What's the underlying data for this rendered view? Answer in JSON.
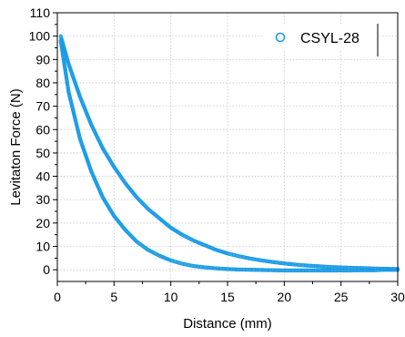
{
  "colors": {
    "series": "#1a9be6",
    "axis": "#000000",
    "grid": "#c8c8c8",
    "legend_border": "#000000"
  },
  "chart_data": {
    "type": "scatter",
    "title": "",
    "xlabel": "Distance (mm)",
    "ylabel": "Levitaton Force (N)",
    "xlim": [
      0,
      30
    ],
    "ylim": [
      -5,
      110
    ],
    "xticks": [
      0,
      5,
      10,
      15,
      20,
      25,
      30
    ],
    "yticks": [
      0,
      10,
      20,
      30,
      40,
      50,
      60,
      70,
      80,
      90,
      100,
      110
    ],
    "grid": "dotted",
    "legend": {
      "position": "top-right",
      "marker": "open-circle"
    },
    "series": [
      {
        "name": "CSYL-28",
        "marker": "open-circle",
        "segments": [
          {
            "branch": "upper",
            "x": [
              0.3,
              1,
              2,
              3,
              4,
              5,
              6,
              7,
              8,
              9,
              10,
              11,
              12,
              13,
              14,
              15,
              16,
              17,
              18,
              19,
              20,
              21,
              22,
              23,
              24,
              25,
              26,
              27,
              28,
              29,
              30
            ],
            "y": [
              100,
              88,
              74,
              62,
              52,
              44,
              37,
              31,
              26,
              22,
              18,
              15,
              12.5,
              10.5,
              8.5,
              7,
              5.8,
              4.8,
              4,
              3.3,
              2.7,
              2.2,
              1.8,
              1.5,
              1.2,
              1,
              0.8,
              0.7,
              0.5,
              0.4,
              0.3
            ]
          },
          {
            "branch": "lower",
            "x": [
              30,
              29,
              28,
              27,
              26,
              25,
              24,
              23,
              22,
              21,
              20,
              19,
              18,
              17,
              16,
              15,
              14,
              13,
              12,
              11,
              10,
              9,
              8,
              7,
              6,
              5,
              4,
              3,
              2,
              1,
              0.3
            ],
            "y": [
              0,
              0,
              -0.2,
              -0.2,
              -0.3,
              -0.3,
              -0.3,
              -0.3,
              -0.3,
              -0.3,
              -0.3,
              -0.2,
              -0.1,
              0,
              0.1,
              0.3,
              0.6,
              1,
              1.6,
              2.6,
              4,
              6,
              8.5,
              12,
              17,
              23,
              31,
              42,
              56,
              76,
              98
            ]
          }
        ]
      }
    ]
  }
}
